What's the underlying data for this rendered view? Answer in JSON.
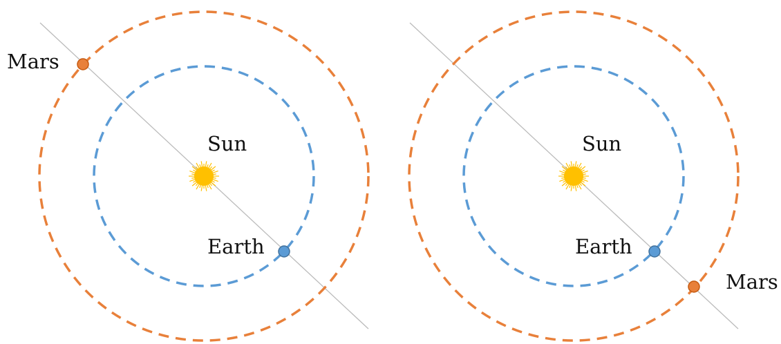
{
  "panels": [
    {
      "labels": {
        "sun": "Sun",
        "earth": "Earth",
        "mars": "Mars"
      }
    },
    {
      "labels": {
        "sun": "Sun",
        "earth": "Earth",
        "mars": "Mars"
      }
    }
  ],
  "colors": {
    "mars_orbit": "#E8803A",
    "earth_orbit": "#5B9BD5",
    "mars": "#E8803A",
    "earth": "#5B9BD5",
    "sun": "#FFC000",
    "line": "#BBBBBB"
  }
}
